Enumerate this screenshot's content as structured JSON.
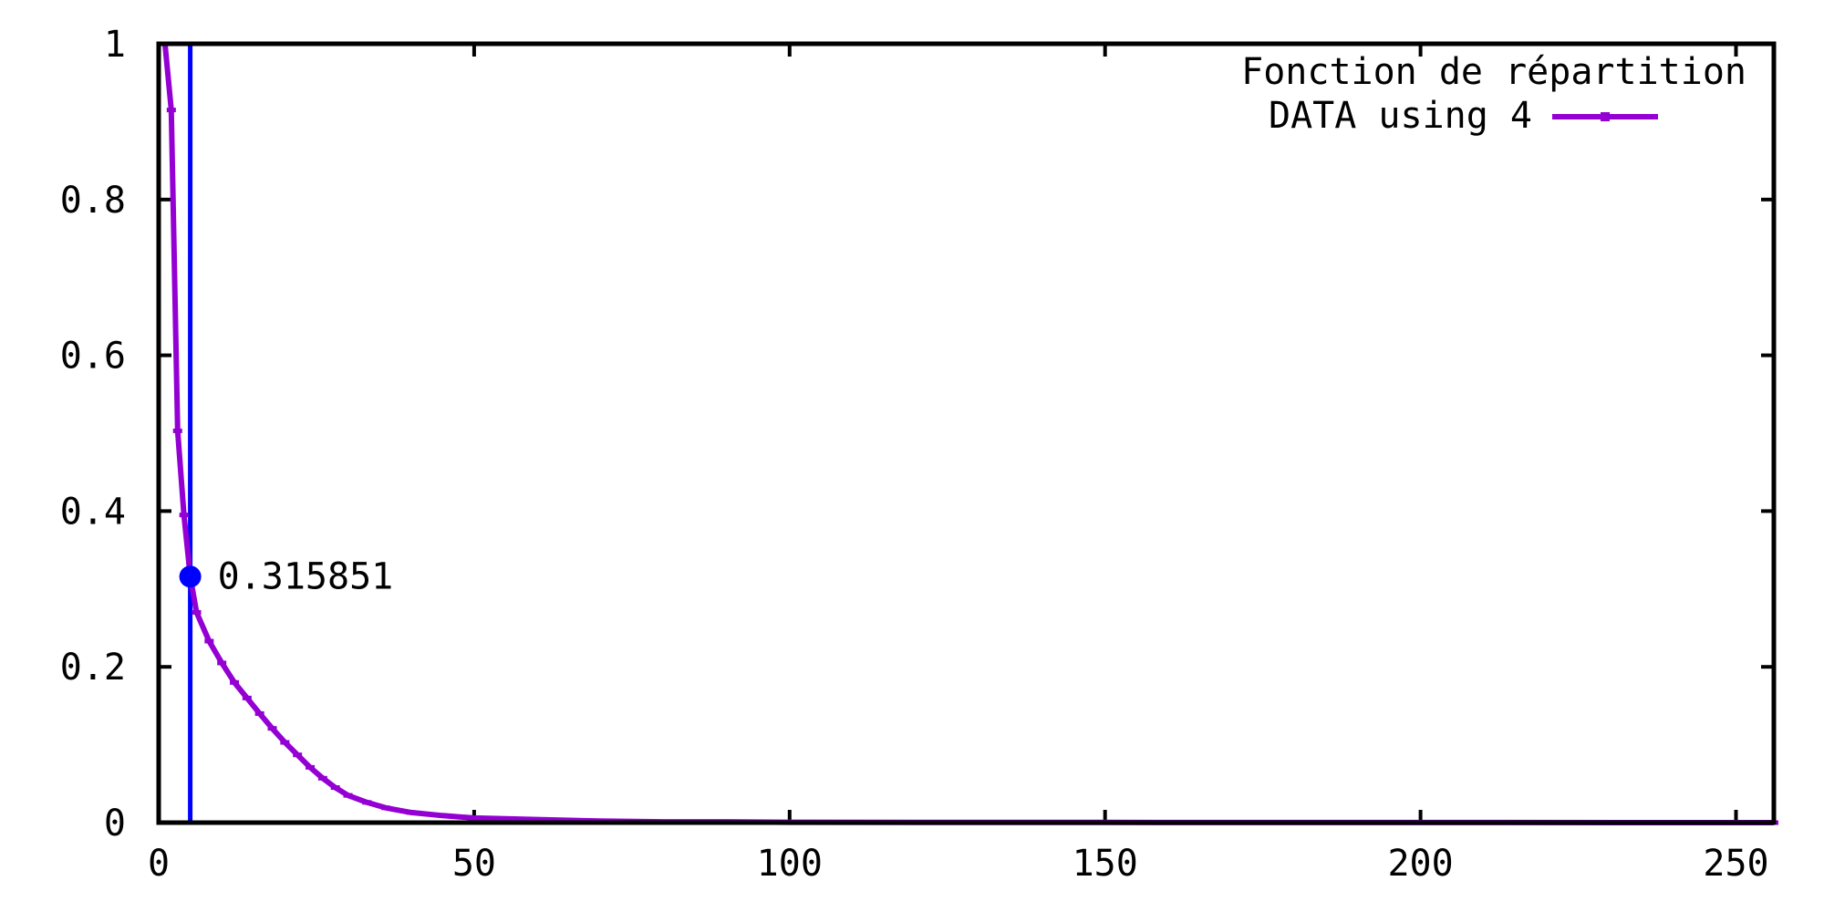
{
  "chart_data": {
    "type": "line",
    "title": "",
    "xlabel": "",
    "ylabel": "",
    "xlim": [
      0,
      256
    ],
    "ylim": [
      0,
      1
    ],
    "x_ticks": [
      0,
      50,
      100,
      150,
      200,
      250
    ],
    "y_ticks": [
      0,
      0.2,
      0.4,
      0.6,
      0.8,
      1
    ],
    "x_tick_labels": [
      "0",
      "50",
      "100",
      "150",
      "200",
      "250"
    ],
    "y_tick_labels": [
      "0",
      "0.2",
      "0.4",
      "0.6",
      "0.8",
      "1"
    ],
    "grid": false,
    "legend": {
      "placement": "top-right",
      "title": "Fonction de répartition",
      "entries": [
        "DATA using 4"
      ]
    },
    "series": [
      {
        "name": "DATA using 4",
        "color": "#9400d3",
        "marker": "tick",
        "x": [
          1,
          2,
          3,
          4,
          5,
          6,
          8,
          10,
          12,
          14,
          16,
          18,
          20,
          22,
          24,
          26,
          28,
          30,
          33,
          36,
          40,
          45,
          50,
          60,
          70,
          80,
          90,
          100,
          120,
          150,
          200,
          256
        ],
        "y": [
          1.0,
          0.915,
          0.503,
          0.395,
          0.316,
          0.27,
          0.233,
          0.205,
          0.18,
          0.16,
          0.14,
          0.121,
          0.103,
          0.087,
          0.071,
          0.057,
          0.045,
          0.035,
          0.026,
          0.019,
          0.013,
          0.009,
          0.006,
          0.004,
          0.002,
          0.001,
          0.001,
          0.0005,
          0.0003,
          0.0002,
          0.0001,
          0.0
        ]
      }
    ],
    "markers": [
      {
        "type": "vline",
        "x": 5,
        "color": "#0000ff"
      },
      {
        "type": "point",
        "x": 5,
        "y": 0.315851,
        "label": "0.315851",
        "color": "#0000ff"
      }
    ]
  }
}
